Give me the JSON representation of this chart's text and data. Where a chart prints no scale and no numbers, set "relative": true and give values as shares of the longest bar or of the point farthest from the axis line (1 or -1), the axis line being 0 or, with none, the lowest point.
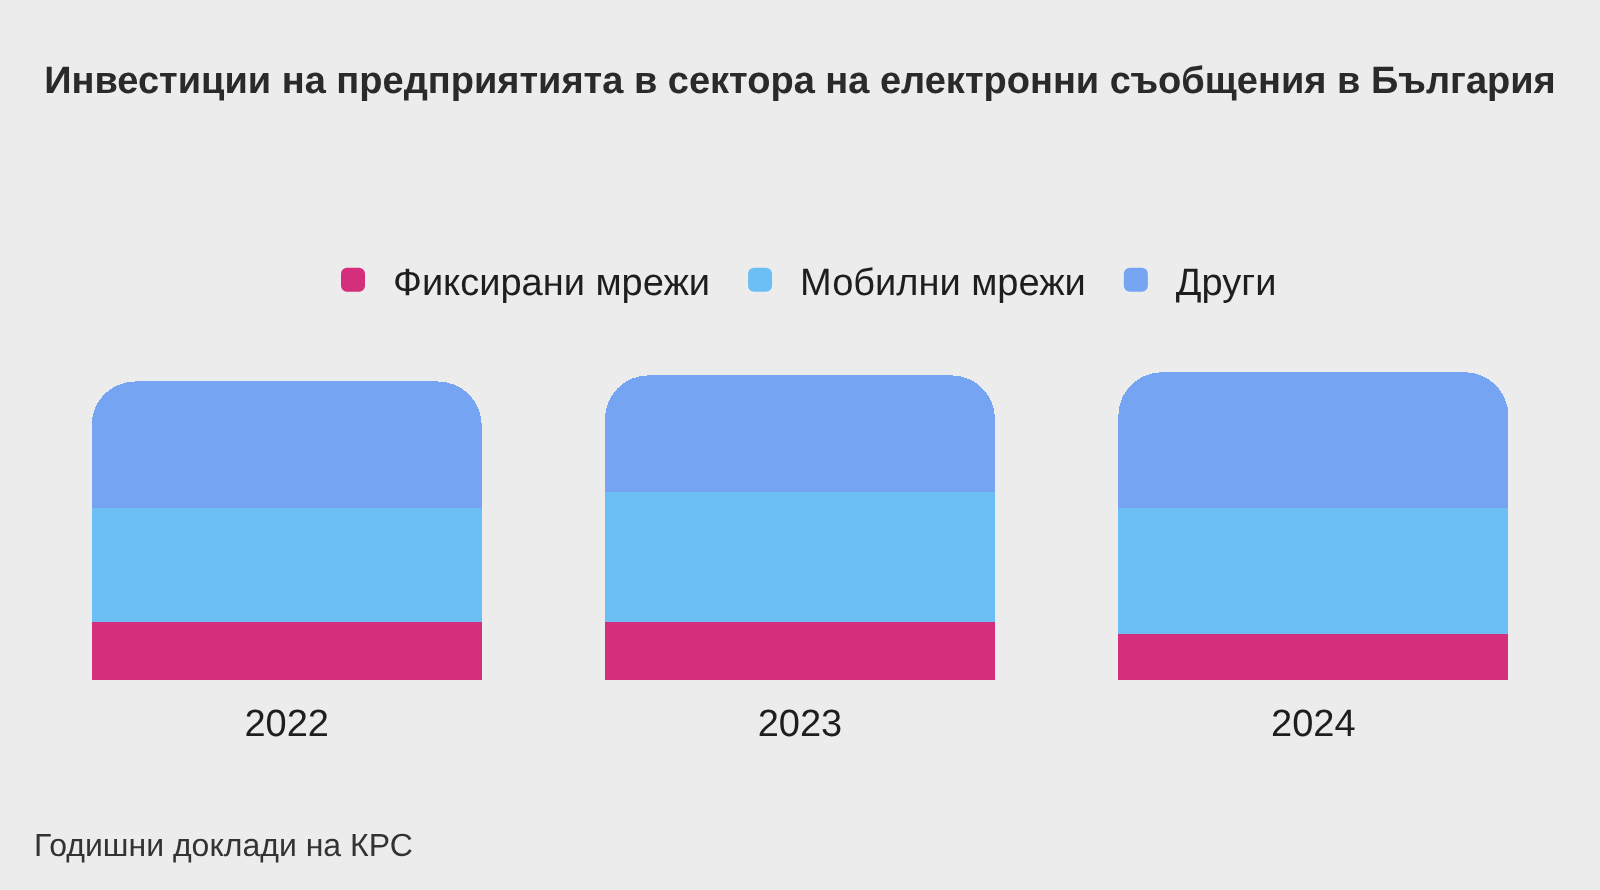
{
  "chart_data": {
    "type": "bar",
    "title": "Инвестиции на предприятията в сектора на електронни съобщения в България",
    "categories": [
      "2022",
      "2023",
      "2024"
    ],
    "stacked": true,
    "relative": true,
    "legend": "top",
    "series": [
      {
        "name": "Фиксирани мрежи",
        "color": "#d42e7c",
        "values": [
          0.19,
          0.19,
          0.15
        ]
      },
      {
        "name": "Мобилни мрежи",
        "color": "#6bbff5",
        "values": [
          0.37,
          0.42,
          0.41
        ]
      },
      {
        "name": "Други",
        "color": "#74a4f2",
        "values": [
          0.41,
          0.38,
          0.44
        ]
      }
    ],
    "annotations": [
      "Годишни доклади на КРС"
    ]
  }
}
